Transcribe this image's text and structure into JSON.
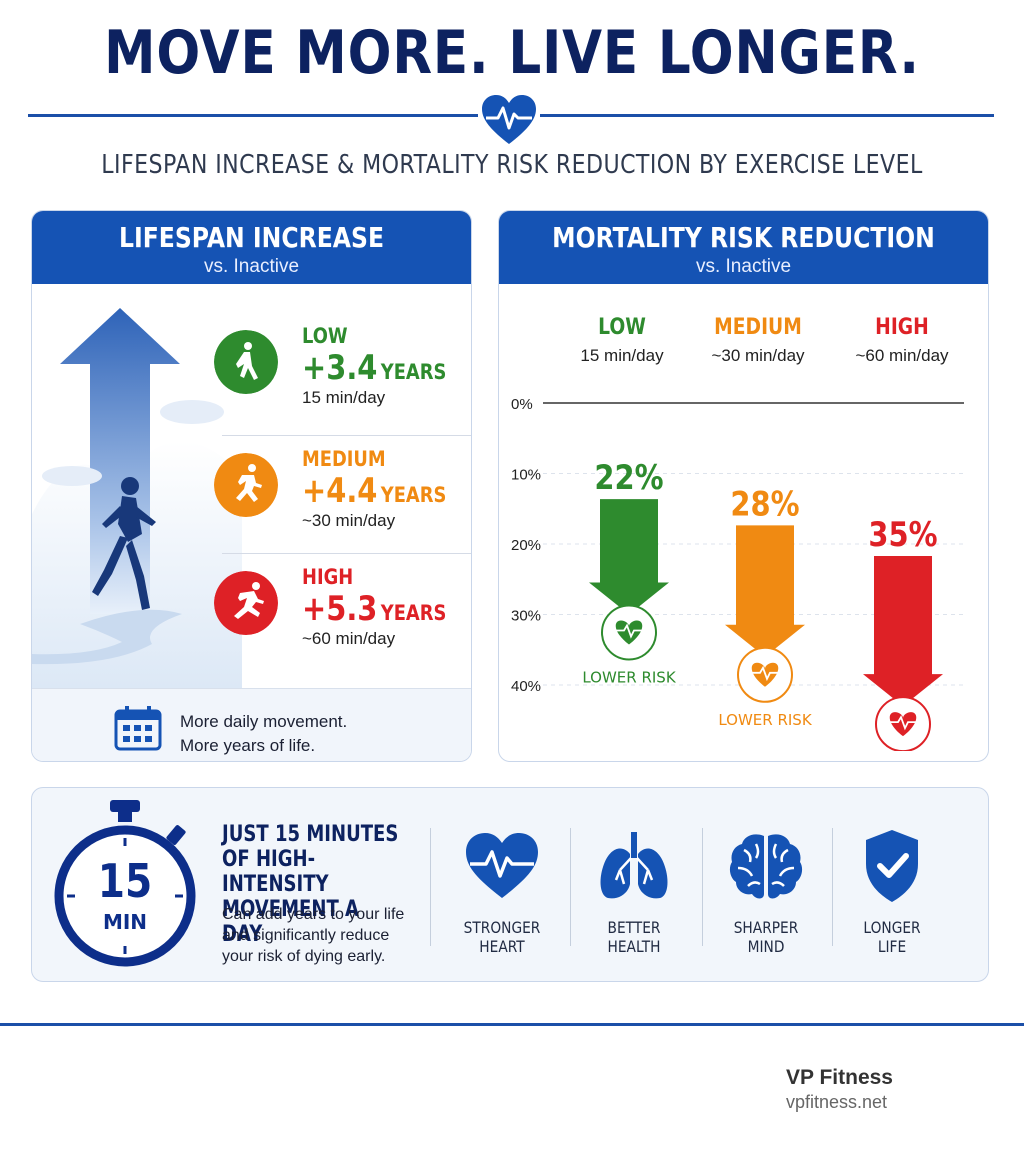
{
  "header": {
    "title": "MOVE MORE. LIVE LONGER.",
    "subtitle": "LIFESPAN INCREASE & MORTALITY RISK REDUCTION BY EXERCISE LEVEL"
  },
  "left_panel": {
    "title": "LIFESPAN INCREASE",
    "subtitle": "vs. Inactive",
    "levels": [
      {
        "name": "LOW",
        "gain": "+3.4",
        "unit": "YEARS",
        "time": "15 min/day",
        "color": "#2e8b2e",
        "icon": "walking-icon"
      },
      {
        "name": "MEDIUM",
        "gain": "+4.4",
        "unit": "YEARS",
        "time": "~30 min/day",
        "color": "#f08a12",
        "icon": "jogging-icon"
      },
      {
        "name": "HIGH",
        "gain": "+5.3",
        "unit": "YEARS",
        "time": "~60 min/day",
        "color": "#de2126",
        "icon": "sprinting-icon"
      }
    ],
    "footer_line1": "More daily movement.",
    "footer_line2": "More years of life."
  },
  "right_panel": {
    "title": "MORTALITY RISK REDUCTION",
    "subtitle": "vs. Inactive",
    "columns": [
      {
        "name": "LOW",
        "time": "15 min/day",
        "color": "#2e8b2e"
      },
      {
        "name": "MEDIUM",
        "time": "~30 min/day",
        "color": "#f08a12"
      },
      {
        "name": "HIGH",
        "time": "~60 min/day",
        "color": "#de2126"
      }
    ],
    "badge_label": "LOWER RISK"
  },
  "chart_data": {
    "type": "bar",
    "title": "MORTALITY RISK REDUCTION",
    "categories": [
      "LOW",
      "MEDIUM",
      "HIGH"
    ],
    "values": [
      22,
      28,
      35
    ],
    "value_labels": [
      "22%",
      "28%",
      "35%"
    ],
    "colors": [
      "#2e8b2e",
      "#f08a12",
      "#de2126"
    ],
    "y_ticks": [
      "0%",
      "10%",
      "20%",
      "30%",
      "40%"
    ],
    "ylim": [
      0,
      40
    ],
    "grid": true
  },
  "banner": {
    "stopwatch_number": "15",
    "stopwatch_unit": "MIN",
    "headline_1": "JUST 15 MINUTES",
    "headline_2": "OF HIGH-INTENSITY",
    "headline_3": "MOVEMENT A DAY",
    "body_1": "Can add years to your life",
    "body_2": "and significantly reduce",
    "body_3": "your risk of dying early.",
    "benefits": [
      {
        "line1": "STRONGER",
        "line2": "HEART",
        "icon": "heart-icon"
      },
      {
        "line1": "BETTER",
        "line2": "HEALTH",
        "icon": "lungs-icon"
      },
      {
        "line1": "SHARPER",
        "line2": "MIND",
        "icon": "brain-icon"
      },
      {
        "line1": "LONGER",
        "line2": "LIFE",
        "icon": "shield-check-icon"
      }
    ]
  },
  "footer": {
    "brand": "VP Fitness",
    "url": "vpfitness.net"
  }
}
